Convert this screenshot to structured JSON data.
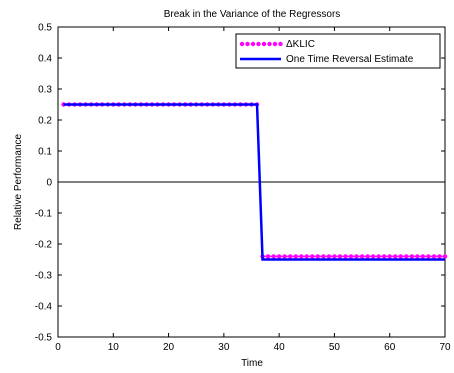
{
  "chart_data": {
    "type": "line",
    "title": "Break in the Variance of the Regressors",
    "xlabel": "Time",
    "ylabel": "Relative Performance",
    "xlim": [
      0,
      70
    ],
    "ylim": [
      -0.5,
      0.5
    ],
    "xticks": [
      0,
      10,
      20,
      30,
      40,
      50,
      60,
      70
    ],
    "yticks": [
      0.5,
      0.4,
      0.3,
      0.2,
      0.1,
      0,
      -0.1,
      -0.2,
      -0.3,
      -0.4,
      -0.5
    ],
    "xtick_labels": [
      "0",
      "10",
      "20",
      "30",
      "40",
      "50",
      "60",
      "70"
    ],
    "ytick_labels": [
      "0.5",
      "0.4",
      "0.3",
      "0.2",
      "0.1",
      "0",
      "-0.1",
      "-0.2",
      "-0.3",
      "-0.4",
      "-0.5"
    ],
    "zero_line": true,
    "grid": false,
    "legend_position": "top-right",
    "series": [
      {
        "name": "ΔKLIC",
        "color": "#ff00ff",
        "marker": "dot",
        "before_value": 0.25,
        "after_value": -0.24,
        "x_start": 1,
        "x_last_before": 36,
        "x_first_after": 37,
        "x_end": 70
      },
      {
        "name": "One Time Reversal Estimate",
        "color": "#0000ff",
        "marker": "none",
        "before_value": 0.25,
        "after_value": -0.25,
        "x_start": 1,
        "x_last_before": 36,
        "x_first_after": 37,
        "x_end": 70
      }
    ]
  }
}
